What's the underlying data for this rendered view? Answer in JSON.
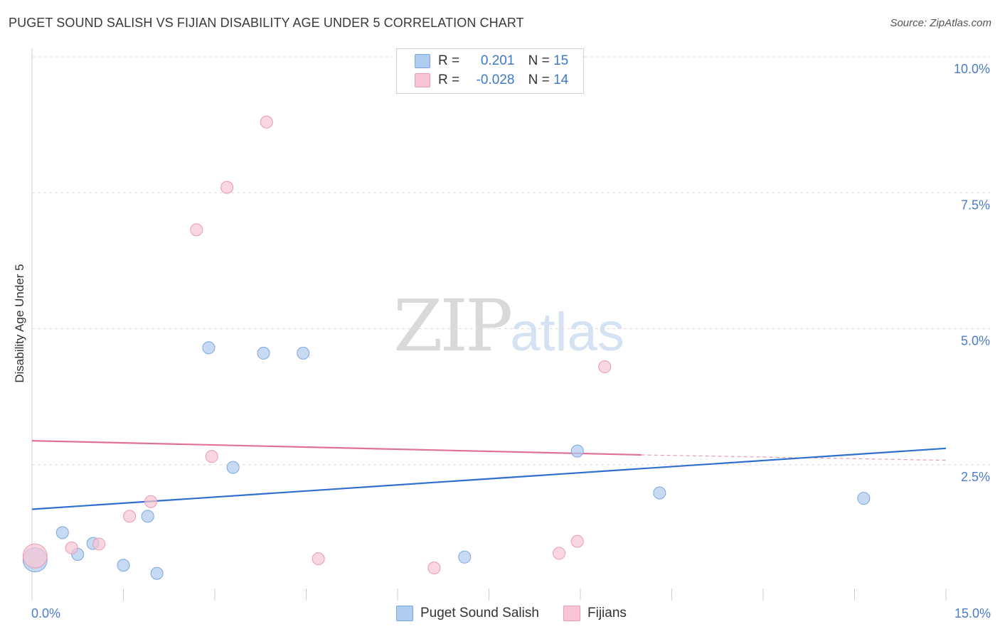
{
  "header": {
    "title": "PUGET SOUND SALISH VS FIJIAN DISABILITY AGE UNDER 5 CORRELATION CHART",
    "source": "Source: ZipAtlas.com"
  },
  "watermark": {
    "zip": "ZIP",
    "atlas": "atlas"
  },
  "legend_top": {
    "rows": [
      {
        "r_label": "R =",
        "r_value": "0.201",
        "n_label": "N =",
        "n_value": "15",
        "color": "#aecbf0"
      },
      {
        "r_label": "R =",
        "r_value": "-0.028",
        "n_label": "N =",
        "n_value": "14",
        "color": "#f7c5d3"
      }
    ]
  },
  "legend_bottom": [
    {
      "label": "Puget Sound Salish",
      "color": "#aecbf0"
    },
    {
      "label": "Fijians",
      "color": "#f7c5d3"
    }
  ],
  "chart_data": {
    "type": "scatter",
    "title": "PUGET SOUND SALISH VS FIJIAN DISABILITY AGE UNDER 5 CORRELATION CHART",
    "xlabel": "",
    "ylabel": "Disability Age Under 5",
    "xlim": [
      0,
      15
    ],
    "ylim": [
      0,
      10.2
    ],
    "x_tick_labels": [
      {
        "value": 0,
        "label": "0.0%"
      },
      {
        "value": 15,
        "label": "15.0%"
      }
    ],
    "y_tick_labels": [
      {
        "value": 2.5,
        "label": "2.5%"
      },
      {
        "value": 5.0,
        "label": "5.0%"
      },
      {
        "value": 7.5,
        "label": "7.5%"
      },
      {
        "value": 10.0,
        "label": "10.0%"
      }
    ],
    "x_minor_ticks": [
      1.5,
      3.0,
      4.5,
      6.0,
      7.5,
      9.0,
      10.5,
      12.0,
      13.5,
      15.0
    ],
    "series": [
      {
        "name": "Puget Sound Salish",
        "color": "#aecbf0",
        "stroke": "#7ba6dd",
        "points": [
          {
            "x": 0.05,
            "y": 0.75,
            "big": true
          },
          {
            "x": 0.5,
            "y": 1.25
          },
          {
            "x": 0.75,
            "y": 0.85
          },
          {
            "x": 1.0,
            "y": 1.05
          },
          {
            "x": 1.5,
            "y": 0.65
          },
          {
            "x": 1.9,
            "y": 1.55
          },
          {
            "x": 2.05,
            "y": 0.5
          },
          {
            "x": 2.9,
            "y": 4.65
          },
          {
            "x": 3.3,
            "y": 2.45
          },
          {
            "x": 3.8,
            "y": 4.55
          },
          {
            "x": 4.45,
            "y": 4.55
          },
          {
            "x": 7.1,
            "y": 0.8
          },
          {
            "x": 8.95,
            "y": 2.75
          },
          {
            "x": 10.3,
            "y": 1.98
          },
          {
            "x": 13.65,
            "y": 1.88
          }
        ],
        "trend": {
          "x": [
            0,
            15
          ],
          "y": [
            1.68,
            2.8
          ]
        }
      },
      {
        "name": "Fijians",
        "color": "#f7c5d3",
        "stroke": "#e99ab3",
        "points": [
          {
            "x": 0.05,
            "y": 0.82,
            "big": true
          },
          {
            "x": 0.65,
            "y": 0.97
          },
          {
            "x": 1.1,
            "y": 1.04
          },
          {
            "x": 1.6,
            "y": 1.55
          },
          {
            "x": 1.95,
            "y": 1.82
          },
          {
            "x": 2.7,
            "y": 6.82
          },
          {
            "x": 2.95,
            "y": 2.65
          },
          {
            "x": 3.2,
            "y": 7.6
          },
          {
            "x": 3.85,
            "y": 8.8
          },
          {
            "x": 4.7,
            "y": 0.77
          },
          {
            "x": 6.6,
            "y": 0.6
          },
          {
            "x": 8.65,
            "y": 0.87
          },
          {
            "x": 8.95,
            "y": 1.09
          },
          {
            "x": 9.4,
            "y": 4.3
          }
        ],
        "trend": {
          "x": [
            0,
            10.0
          ],
          "y": [
            2.94,
            2.68
          ]
        },
        "trend_dashed": {
          "x": [
            10.0,
            15
          ],
          "y": [
            2.68,
            2.58
          ]
        }
      }
    ]
  }
}
